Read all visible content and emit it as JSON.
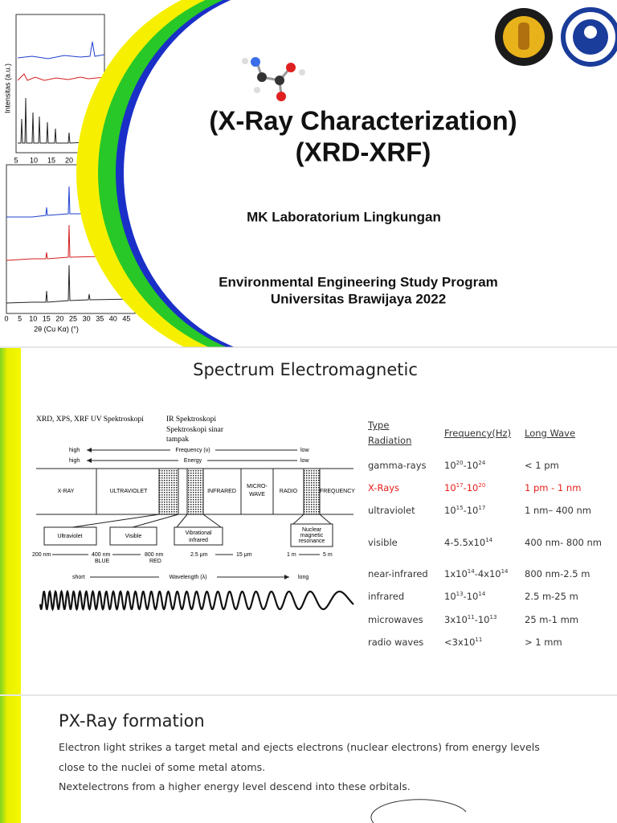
{
  "slide1": {
    "plot": {
      "ylabel": "Intensitas (a.u.)",
      "xticks_top": [
        "5",
        "10",
        "15",
        "20"
      ],
      "xticks_bottom": [
        "0",
        "5",
        "10",
        "15",
        "20",
        "25",
        "30",
        "35",
        "40",
        "45"
      ],
      "xlabel": "2θ (Cu Kα) (°)"
    },
    "title_line1": "(X-Ray Characterization)",
    "title_line2": "(XRD-XRF)",
    "course": "MK Laboratorium Lingkungan",
    "program": "Environmental Engineering Study Program",
    "university": "Universitas Brawijaya 2022"
  },
  "slide2": {
    "title": "Spectrum Electromagnetic",
    "diagram": {
      "top_label1": "XRD, XPS, XRF UV Spektroskopi",
      "top_label2": "IR Spektroskopi",
      "top_label3": "Spektroskopi sinar",
      "top_label4": "tampak",
      "freq_high": "high",
      "freq_label": "Frequency (ν)",
      "freq_low": "low",
      "energy_high": "high",
      "energy_label": "Energy",
      "energy_low": "low",
      "bands": [
        "X-RAY",
        "ULTRAVIOLET",
        "INFRARED",
        "MICRO-",
        "WAVE",
        "RADIO",
        "FREQUENCY"
      ],
      "boxes": [
        "Ultraviolet",
        "Visible",
        "Vibrational",
        "infrared",
        "Nuclear",
        "magnetic",
        "resonance"
      ],
      "scale": [
        "200 nm",
        "400 nm",
        "800 nm",
        "BLUE",
        "RED",
        "2.5 μm",
        "15 μm",
        "1 m",
        "5 m"
      ],
      "wl_short": "short",
      "wl_label": "Wavelength (λ)",
      "wl_long": "long"
    },
    "table": {
      "headers": [
        "Type",
        "Radiation",
        "Frequency(Hz)",
        "Long Wave"
      ],
      "rows": [
        {
          "type": "gamma-rays",
          "freq": [
            [
              "10",
              "20"
            ],
            [
              "-10",
              "24"
            ]
          ],
          "wave": "< 1 pm"
        },
        {
          "type": "X-Rays",
          "freq": [
            [
              "10",
              "17"
            ],
            [
              "-10",
              "20"
            ]
          ],
          "wave": "1 pm - 1 nm",
          "color": "#e8201a"
        },
        {
          "type": "ultraviolet",
          "freq": [
            [
              "10",
              "15"
            ],
            [
              "-10",
              "17"
            ]
          ],
          "wave": "1 nm– 400 nm"
        },
        {
          "type": "visible",
          "freq": [
            [
              "4-5.5x10",
              "14"
            ]
          ],
          "wave": "400 nm- 800 nm"
        },
        {
          "type": "near-infrared",
          "freq": [
            [
              "1x10",
              "14"
            ],
            [
              "-4x10",
              "14"
            ]
          ],
          "wave": "800 nm-2.5 m"
        },
        {
          "type": "infrared",
          "freq": [
            [
              "10",
              "13"
            ],
            [
              "-10",
              "14"
            ]
          ],
          "wave": "2.5 m-25 m"
        },
        {
          "type": "microwaves",
          "freq": [
            [
              "3x10",
              "11"
            ],
            [
              "-10",
              "13"
            ]
          ],
          "wave": "25 m-1 mm"
        },
        {
          "type": "radio waves",
          "freq": [
            [
              "<3x10",
              "11"
            ]
          ],
          "wave": "> 1 mm"
        }
      ]
    }
  },
  "slide3": {
    "title": "PX-Ray formation",
    "paragraphs": [
      "Electron light strikes a target metal and ejects electrons (nuclear electrons) from energy levels close to the nuclei of some metal atoms.",
      "Nextelectrons from a higher energy level descend into these orbitals."
    ]
  }
}
